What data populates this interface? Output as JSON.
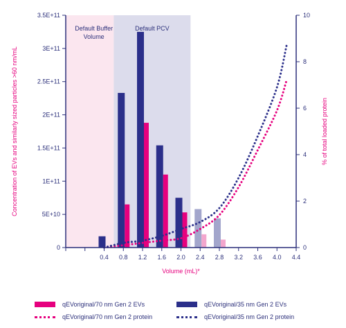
{
  "chart_data": {
    "type": "bar",
    "title": "",
    "xlabel": "Volume (mL)*",
    "ylabel": "Concentration of EVs and similarly sized particles >60 nm/mL",
    "y2label": "% of total loaded protein",
    "x_ticks": [
      "0.4",
      "0.8",
      "1.2",
      "1.6",
      "2.0",
      "2.4",
      "2.8",
      "3.2",
      "3.6",
      "4.0",
      "4.4"
    ],
    "y_ticks": [
      "0",
      "5E+10",
      "1E+11",
      "1.5E+11",
      "2E+11",
      "2.5E+11",
      "3E+11",
      "3.5E+11"
    ],
    "y2_ticks": [
      "0",
      "2",
      "4",
      "6",
      "8",
      "10"
    ],
    "ylim": [
      0,
      350000000000
    ],
    "y2lim": [
      0,
      10
    ],
    "xlim": [
      -0.4,
      4.4
    ],
    "regions": [
      {
        "label": "Default Buffer Volume",
        "x_start": -0.4,
        "x_end": 0.6,
        "color": "#fbe6ef"
      },
      {
        "label": "Default PCV",
        "x_start": 0.6,
        "x_end": 2.2,
        "color": "#dcdcec"
      }
    ],
    "series": [
      {
        "name": "qEVoriginal/70 nm Gen 2 EVs",
        "kind": "bar",
        "color": "#e6007e",
        "x": [
          0.8,
          1.2,
          1.6,
          2.0,
          2.4,
          2.8
        ],
        "values": [
          65000000000,
          188000000000,
          110000000000,
          53000000000,
          20000000000,
          12000000000
        ]
      },
      {
        "name": "qEVoriginal/35 nm Gen 2 EVs",
        "kind": "bar",
        "color": "#2b2f8a",
        "x": [
          0.4,
          0.8,
          1.2,
          1.6,
          2.0,
          2.4,
          2.8
        ],
        "values": [
          17000000000,
          233000000000,
          325000000000,
          154000000000,
          75000000000,
          58000000000,
          44000000000
        ]
      },
      {
        "name": "qEVoriginal/70 nm Gen 2 protein",
        "kind": "dotted-line",
        "axis": "y2",
        "color": "#e6007e",
        "x": [
          0.4,
          0.8,
          1.2,
          1.6,
          2.0,
          2.4,
          2.8,
          3.2,
          3.6,
          4.0,
          4.2
        ],
        "values": [
          0,
          0.1,
          0.2,
          0.3,
          0.4,
          0.8,
          1.4,
          2.6,
          4.2,
          5.9,
          7.2
        ]
      },
      {
        "name": "qEVoriginal/35 nm Gen 2 protein",
        "kind": "dotted-line",
        "axis": "y2",
        "color": "#2b2f8a",
        "x": [
          0.4,
          0.8,
          1.2,
          1.6,
          2.0,
          2.4,
          2.8,
          3.2,
          3.6,
          4.0,
          4.2
        ],
        "values": [
          0,
          0.2,
          0.3,
          0.5,
          0.8,
          1.1,
          1.7,
          3.0,
          4.8,
          6.9,
          8.7
        ]
      }
    ],
    "legend_position": "bottom"
  },
  "colors": {
    "pink": "#e6007e",
    "navy": "#2b2f8a",
    "pink_light": "#f3a6cd",
    "navy_light": "#a3a6cc",
    "buffer_region": "#fbe6ef",
    "pcv_region": "#dcdcec"
  }
}
